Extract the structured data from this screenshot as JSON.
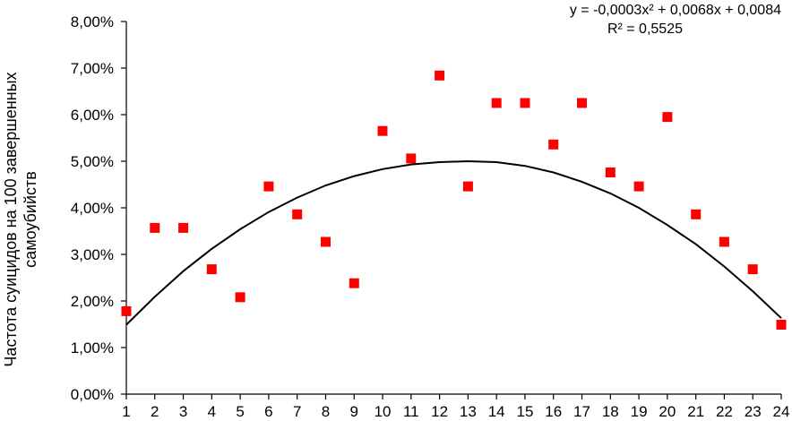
{
  "chart_data": {
    "type": "scatter",
    "title": "",
    "xlabel": "",
    "ylabel_lines": [
      "Частота суицидов на 100 завершенных",
      "самоубийств"
    ],
    "x": [
      1,
      2,
      3,
      4,
      5,
      6,
      7,
      8,
      9,
      10,
      11,
      12,
      13,
      14,
      15,
      16,
      17,
      18,
      19,
      20,
      21,
      22,
      23,
      24
    ],
    "y": [
      0.0178,
      0.0357,
      0.0357,
      0.0268,
      0.0208,
      0.0446,
      0.0386,
      0.0327,
      0.0238,
      0.0565,
      0.0506,
      0.0684,
      0.0446,
      0.0625,
      0.0625,
      0.0536,
      0.0625,
      0.0476,
      0.0446,
      0.0595,
      0.0386,
      0.0327,
      0.0268,
      0.0149
    ],
    "ylim": [
      0,
      0.08
    ],
    "xlim": [
      1,
      24
    ],
    "y_ticks": [
      "0,00%",
      "1,00%",
      "2,00%",
      "3,00%",
      "4,00%",
      "5,00%",
      "6,00%",
      "7,00%",
      "8,00%"
    ],
    "x_ticks": [
      "1",
      "2",
      "3",
      "4",
      "5",
      "6",
      "7",
      "8",
      "9",
      "10",
      "11",
      "12",
      "13",
      "14",
      "15",
      "16",
      "17",
      "18",
      "19",
      "20",
      "21",
      "22",
      "23",
      "24"
    ],
    "marker_color": "#ff0000",
    "trendline": {
      "type": "polynomial",
      "equation_line1": "y = -0,0003x² + 0,0068x + 0,0084",
      "equation_line2": "R² = 0,5525",
      "curve_x": [
        1,
        2,
        3,
        4,
        5,
        6,
        7,
        8,
        9,
        10,
        11,
        12,
        13,
        14,
        15,
        16,
        17,
        18,
        19,
        20,
        21,
        22,
        23,
        24
      ],
      "curve_y": [
        0.0149,
        0.0209,
        0.0264,
        0.0312,
        0.0354,
        0.0391,
        0.0422,
        0.0448,
        0.0468,
        0.0483,
        0.0493,
        0.0498,
        0.05,
        0.0498,
        0.049,
        0.0476,
        0.0456,
        0.0431,
        0.04,
        0.0363,
        0.0322,
        0.0274,
        0.0221,
        0.0163
      ],
      "color": "#000000"
    },
    "grid": false
  }
}
